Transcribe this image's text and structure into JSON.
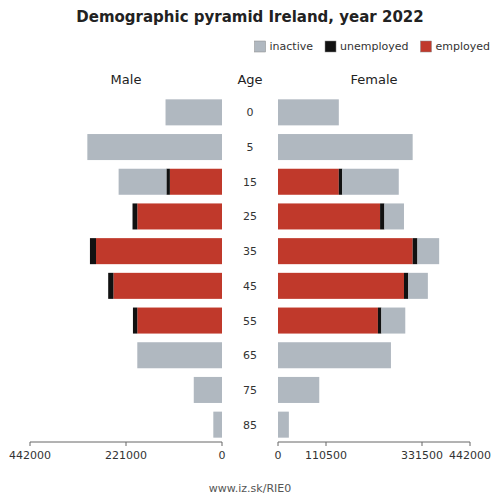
{
  "chart_data": [
    {
      "type": "bar",
      "orientation": "horizontal",
      "stacked": true,
      "title": "Demographic pyramid Ireland, year 2022",
      "subtitle": "Male",
      "ylabel": "Age",
      "annotations": [
        "www.iz.sk/RIE0"
      ],
      "categories": [
        "0",
        "5",
        "15",
        "25",
        "35",
        "45",
        "55",
        "65",
        "75",
        "85"
      ],
      "series": [
        {
          "color": "#b0b8c0",
          "values": [
            130000,
            310000,
            110000,
            0,
            0,
            0,
            0,
            195000,
            65000,
            20000
          ]
        },
        {
          "color": "#111111",
          "values": [
            0,
            0,
            8000,
            11000,
            14000,
            12000,
            10000,
            0,
            0,
            0
          ]
        },
        {
          "color": "#c0392b",
          "values": [
            0,
            0,
            120000,
            195000,
            290000,
            250000,
            195000,
            0,
            0,
            0
          ]
        }
      ],
      "xlim": [
        442000,
        0
      ],
      "xticks": [
        0,
        221000,
        442000
      ]
    },
    {
      "type": "bar",
      "orientation": "horizontal",
      "stacked": true,
      "subtitle": "Female",
      "categories": [
        "0",
        "5",
        "15",
        "25",
        "35",
        "45",
        "55",
        "65",
        "75",
        "85"
      ],
      "series": [
        {
          "name": "inactive",
          "color": "#b0b8c0",
          "values": [
            140000,
            310000,
            130000,
            45000,
            50000,
            45000,
            55000,
            260000,
            95000,
            25000
          ]
        },
        {
          "name": "unemployed",
          "color": "#111111",
          "values": [
            0,
            0,
            8000,
            10000,
            11000,
            10000,
            8000,
            0,
            0,
            0
          ]
        },
        {
          "name": "employed",
          "color": "#c0392b",
          "values": [
            0,
            0,
            140000,
            235000,
            310000,
            290000,
            230000,
            0,
            0,
            0
          ]
        }
      ],
      "xlim": [
        0,
        442000
      ],
      "xticks": [
        0,
        110500,
        331500,
        442000
      ],
      "legend": "upper right",
      "tick_labels": "x"
    }
  ]
}
